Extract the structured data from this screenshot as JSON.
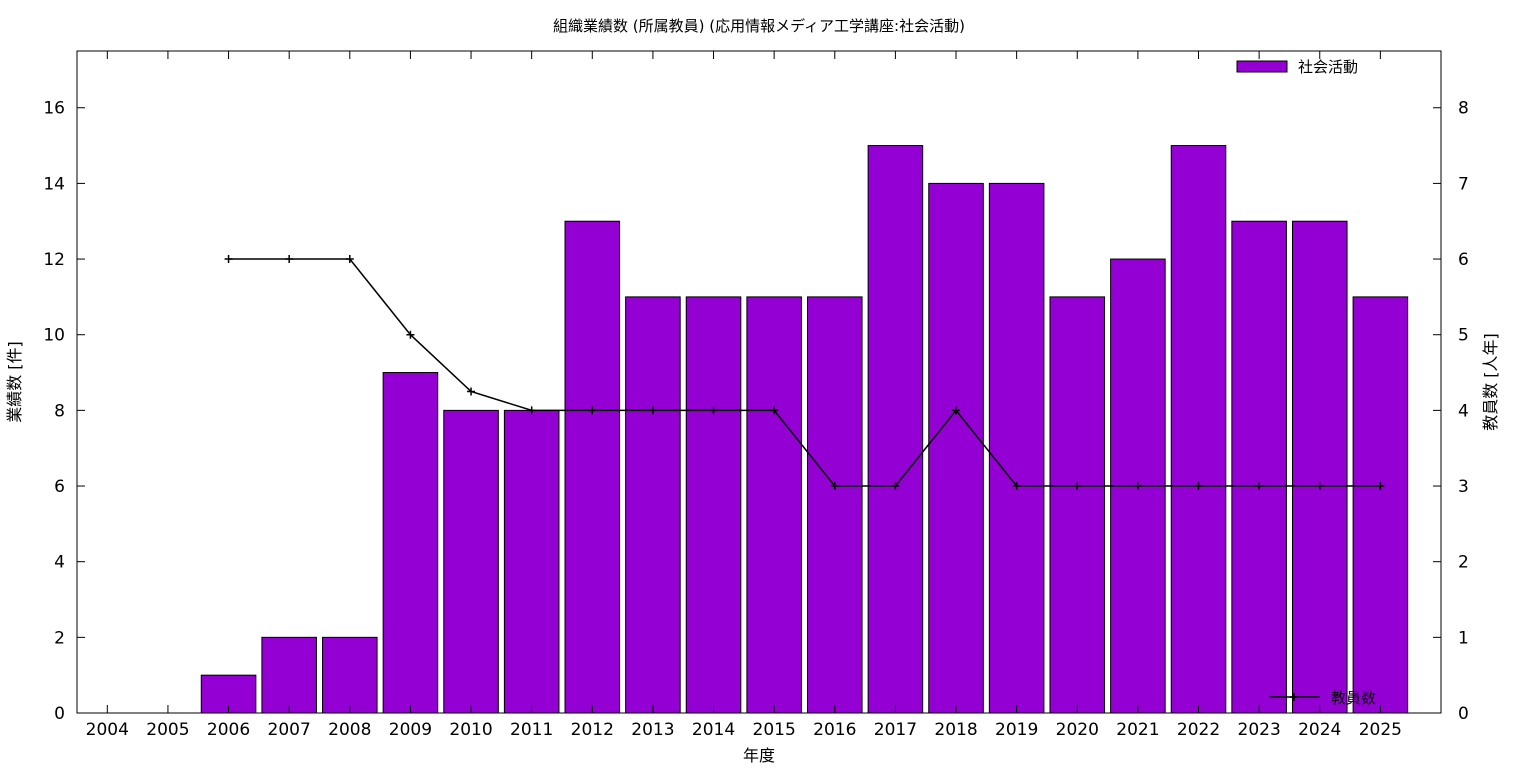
{
  "chart_data": {
    "type": "bar",
    "title": "組織業績数 (所属教員) (応用情報メディア工学講座:社会活動)",
    "xlabel": "年度",
    "ylabel": "業績数 [件]",
    "y2label": "教員数 [人年]",
    "categories": [
      "2004",
      "2005",
      "2006",
      "2007",
      "2008",
      "2009",
      "2010",
      "2011",
      "2012",
      "2013",
      "2014",
      "2015",
      "2016",
      "2017",
      "2018",
      "2019",
      "2020",
      "2021",
      "2022",
      "2023",
      "2024",
      "2025"
    ],
    "series": [
      {
        "name": "社会活動",
        "type": "bar",
        "axis": "left",
        "color": "#9400d3",
        "values": [
          0,
          0,
          1,
          2,
          2,
          9,
          8,
          8,
          13,
          11,
          11,
          11,
          11,
          15,
          14,
          14,
          11,
          12,
          15,
          13,
          13,
          11
        ]
      },
      {
        "name": "教員数",
        "type": "line",
        "axis": "right",
        "color": "#000000",
        "values": [
          null,
          null,
          6,
          6,
          6,
          5,
          4.25,
          4,
          4,
          4,
          4,
          4,
          3,
          3,
          4,
          3,
          3,
          3,
          3,
          3,
          3,
          3
        ]
      }
    ],
    "ylim": [
      0,
      17.5
    ],
    "y2lim": [
      0,
      8.75
    ],
    "yticks": [
      "0",
      "2",
      "4",
      "6",
      "8",
      "10",
      "12",
      "14",
      "16"
    ],
    "y2ticks": [
      "0",
      "1",
      "2",
      "3",
      "4",
      "5",
      "6",
      "7",
      "8"
    ],
    "legend": [
      "top-right",
      "bottom-right"
    ],
    "grid": false
  }
}
